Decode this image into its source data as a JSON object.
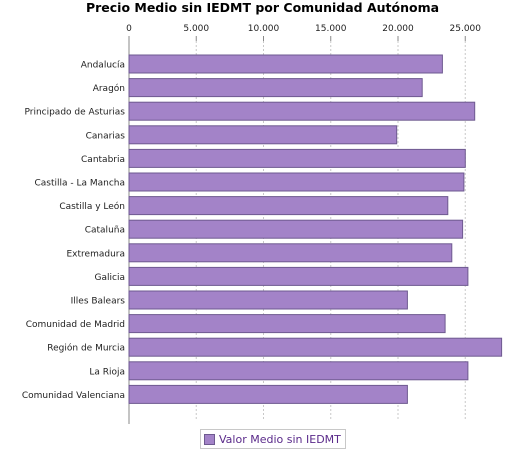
{
  "chart_data": {
    "type": "bar",
    "orientation": "horizontal",
    "title": "Precio Medio sin IEDMT por Comunidad Autónoma",
    "categories": [
      "Andalucía",
      "Aragón",
      "Principado de Asturias",
      "Canarias",
      "Cantabria",
      "Castilla - La Mancha",
      "Castilla y León",
      "Cataluña",
      "Extremadura",
      "Galicia",
      "Illes Balears",
      "Comunidad de Madrid",
      "Región de Murcia",
      "La Rioja",
      "Comunidad Valenciana"
    ],
    "series": [
      {
        "name": "Valor Medio sin IEDMT",
        "values": [
          23300,
          21800,
          25700,
          19900,
          25000,
          24900,
          23700,
          24800,
          24000,
          25200,
          20700,
          23500,
          27700,
          25200,
          20700
        ],
        "color": "#a383c8"
      }
    ],
    "xlim": [
      0,
      29000
    ],
    "xticks": [
      0,
      5000,
      10000,
      15000,
      20000,
      25000
    ],
    "xtick_labels": [
      "0",
      "5.000",
      "10.000",
      "15.000",
      "20.000",
      "25.000"
    ],
    "axis_position": "top",
    "grid": true,
    "legend_position": "bottom"
  }
}
